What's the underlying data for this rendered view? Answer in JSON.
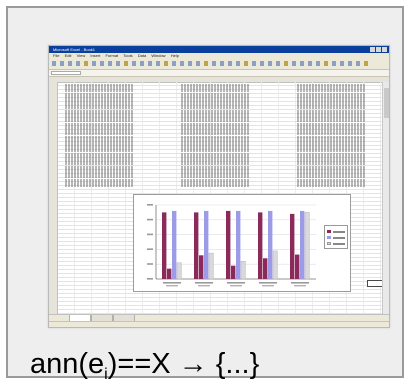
{
  "caption": {
    "prefix": "ann(e",
    "subscript": "i",
    "suffix": ")==X → {...}"
  },
  "excel": {
    "window_title": "Microsoft Excel - Book1",
    "menu_items": [
      "File",
      "Edit",
      "View",
      "Insert",
      "Format",
      "Tools",
      "Data",
      "Window",
      "Help"
    ]
  },
  "chart_data": {
    "type": "bar",
    "categories": [
      "",
      "",
      "",
      "",
      ""
    ],
    "series": [
      {
        "values": [
          0.9,
          0.9,
          0.92,
          0.9,
          0.88
        ],
        "color": "#8b2a5a"
      },
      {
        "values": [
          0.14,
          0.32,
          0.18,
          0.28,
          0.33
        ],
        "color": "#8b2a5a"
      },
      {
        "values": [
          0.92,
          0.92,
          0.92,
          0.92,
          0.92
        ],
        "color": "#9b9be8"
      },
      {
        "values": [
          0.22,
          0.35,
          0.24,
          0.38,
          0.9
        ],
        "color": "#d9d9d9"
      }
    ],
    "ylim": [
      0,
      1
    ],
    "grid": true,
    "legend": "right"
  },
  "colors": {
    "series_primary": "#8b2a5a",
    "series_secondary": "#9b9be8",
    "series_tertiary": "#d9d9d9",
    "titlebar": "#0a3f9e"
  }
}
